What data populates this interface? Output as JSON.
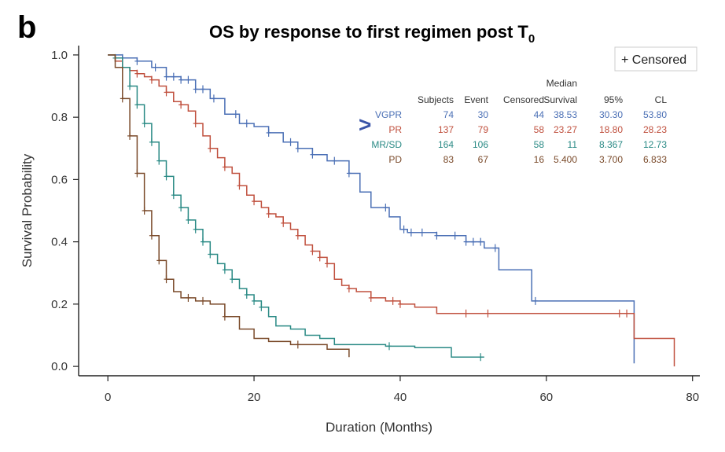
{
  "figure": {
    "panel_letter": "b",
    "title_main": "OS by response to first regimen post T",
    "title_subscript": "0",
    "arrow_mark": ">",
    "legend_label": "+ Censored"
  },
  "colors": {
    "axis": "#222222",
    "VGPR": "#4a6fb5",
    "PR": "#c0503e",
    "MR/SD": "#2a8a85",
    "PD": "#7a4a2a"
  },
  "stats_table": {
    "header_top": [
      "",
      "",
      "",
      "",
      "Median",
      "",
      ""
    ],
    "header": [
      "",
      "Subjects",
      "Event",
      "Censored",
      "Survival",
      "95%",
      "CL"
    ],
    "rows": [
      {
        "series": "VGPR",
        "label": "VGPR",
        "values": [
          "74",
          "30",
          "44",
          "38.53",
          "30.30",
          "53.80"
        ]
      },
      {
        "series": "PR",
        "label": "PR",
        "values": [
          "137",
          "79",
          "58",
          "23.27",
          "18.80",
          "28.23"
        ]
      },
      {
        "series": "MR/SD",
        "label": "MR/SD",
        "values": [
          "164",
          "106",
          "58",
          "11",
          "8.367",
          "12.73"
        ]
      },
      {
        "series": "PD",
        "label": "PD",
        "values": [
          "83",
          "67",
          "16",
          "5.400",
          "3.700",
          "6.833"
        ]
      }
    ]
  },
  "chart_data": {
    "type": "line",
    "subtype": "kaplan-meier step curve",
    "title": "OS by response to first regimen post T0",
    "xlabel": "Duration (Months)",
    "ylabel": "Survival Probability",
    "xlim": [
      -4,
      81
    ],
    "ylim": [
      -0.03,
      1.03
    ],
    "xticks": [
      0,
      20,
      40,
      60,
      80
    ],
    "yticks": [
      0.0,
      0.2,
      0.4,
      0.6,
      0.8,
      1.0
    ],
    "ytick_labels": [
      "0.0",
      "0.2",
      "0.4",
      "0.6",
      "0.8",
      "1.0"
    ],
    "grid": false,
    "legend": {
      "placement": "top-right",
      "entries": [
        "+ Censored"
      ]
    },
    "series": [
      {
        "name": "VGPR",
        "x": [
          0,
          2,
          4,
          6,
          8,
          10,
          12,
          14,
          16,
          18,
          20,
          22,
          24,
          26,
          28,
          30,
          33,
          34.5,
          36,
          38.5,
          40,
          41,
          45,
          49,
          51.5,
          53.5,
          58,
          66,
          72
        ],
        "y": [
          1.0,
          0.99,
          0.98,
          0.96,
          0.93,
          0.92,
          0.89,
          0.86,
          0.81,
          0.78,
          0.77,
          0.75,
          0.72,
          0.7,
          0.68,
          0.66,
          0.62,
          0.56,
          0.51,
          0.48,
          0.44,
          0.43,
          0.42,
          0.4,
          0.38,
          0.31,
          0.21,
          0.21,
          0.01
        ],
        "censored_x": [
          2,
          4,
          6.5,
          8,
          9,
          10,
          11,
          12,
          13,
          14.5,
          17.5,
          19,
          22,
          25,
          26,
          28,
          31,
          33,
          38,
          40.5,
          41.5,
          43,
          45,
          47.5,
          49,
          50,
          51,
          53,
          58.5
        ]
      },
      {
        "name": "PR",
        "x": [
          0,
          1,
          2,
          3,
          4,
          5,
          6,
          7,
          8,
          9,
          10,
          11,
          12,
          13,
          14,
          15,
          16,
          17,
          18,
          19,
          20,
          21,
          22,
          23,
          24,
          25,
          26,
          27,
          28,
          29,
          30,
          31,
          32,
          33,
          34,
          36,
          38,
          40,
          42,
          45,
          60,
          70,
          72,
          77.5
        ],
        "y": [
          1.0,
          0.98,
          0.96,
          0.95,
          0.94,
          0.93,
          0.92,
          0.9,
          0.88,
          0.85,
          0.84,
          0.82,
          0.78,
          0.74,
          0.7,
          0.67,
          0.64,
          0.62,
          0.58,
          0.55,
          0.53,
          0.51,
          0.49,
          0.48,
          0.46,
          0.44,
          0.42,
          0.39,
          0.37,
          0.35,
          0.33,
          0.28,
          0.26,
          0.25,
          0.24,
          0.22,
          0.21,
          0.2,
          0.19,
          0.17,
          0.17,
          0.17,
          0.09,
          0.0
        ],
        "censored_x": [
          2,
          4,
          6,
          8,
          10,
          12,
          14,
          16,
          18,
          20,
          22,
          24,
          26,
          28,
          29,
          30,
          33,
          36,
          39,
          40,
          49,
          52,
          70,
          71
        ]
      },
      {
        "name": "MR/SD",
        "x": [
          0,
          1,
          2,
          3,
          4,
          5,
          6,
          7,
          8,
          9,
          10,
          11,
          12,
          13,
          14,
          15,
          16,
          17,
          18,
          19,
          20,
          21,
          22,
          23,
          25,
          27,
          29,
          31,
          38,
          42,
          47,
          51.5
        ],
        "y": [
          1.0,
          0.99,
          0.96,
          0.9,
          0.84,
          0.78,
          0.72,
          0.66,
          0.61,
          0.55,
          0.51,
          0.47,
          0.44,
          0.4,
          0.36,
          0.33,
          0.31,
          0.28,
          0.25,
          0.23,
          0.21,
          0.19,
          0.16,
          0.13,
          0.12,
          0.1,
          0.09,
          0.07,
          0.065,
          0.06,
          0.03,
          0.03
        ],
        "censored_x": [
          1,
          3,
          4,
          5,
          6,
          7,
          8,
          9,
          10,
          11,
          12,
          13,
          14,
          16,
          17,
          19,
          20,
          21,
          38.5,
          51
        ]
      },
      {
        "name": "PD",
        "x": [
          0,
          1,
          2,
          3,
          4,
          5,
          6,
          7,
          8,
          9,
          10,
          12,
          14,
          16,
          18,
          20,
          22,
          25,
          30,
          33
        ],
        "y": [
          1.0,
          0.96,
          0.86,
          0.74,
          0.62,
          0.5,
          0.42,
          0.34,
          0.28,
          0.24,
          0.22,
          0.21,
          0.2,
          0.16,
          0.12,
          0.09,
          0.08,
          0.07,
          0.055,
          0.03
        ],
        "censored_x": [
          2,
          3,
          4,
          5,
          6,
          7,
          8,
          11,
          13,
          16,
          26
        ]
      }
    ]
  }
}
